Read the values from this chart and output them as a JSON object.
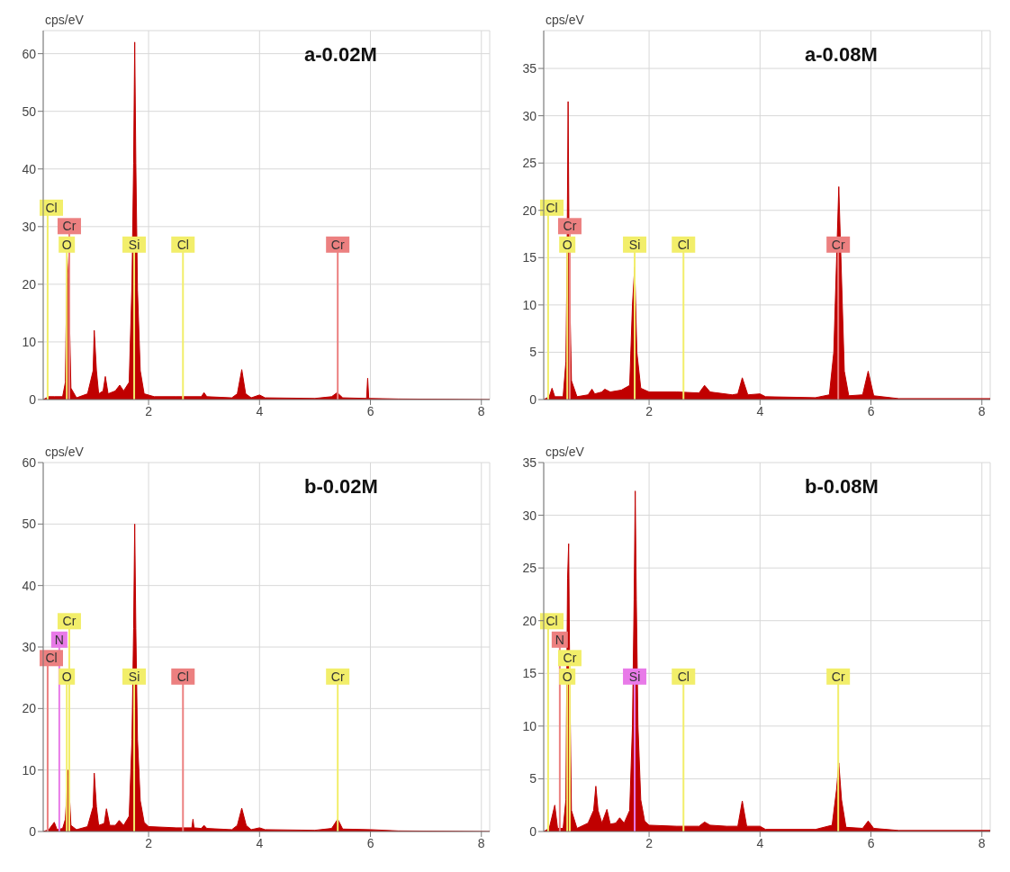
{
  "chart_data": [
    {
      "type": "area",
      "title": "a-0.02M",
      "ylabel": "cps/eV",
      "xlim": [
        0.1,
        8.15
      ],
      "xticks": [
        2,
        4,
        6,
        8
      ],
      "ylim": [
        0,
        64
      ],
      "yticks": [
        0,
        10,
        20,
        30,
        40,
        50,
        60
      ],
      "grid": true,
      "x": [
        0.1,
        0.2,
        0.3,
        0.45,
        0.5,
        0.53,
        0.56,
        0.6,
        0.7,
        0.9,
        1.0,
        1.02,
        1.06,
        1.1,
        1.18,
        1.22,
        1.27,
        1.4,
        1.48,
        1.55,
        1.65,
        1.7,
        1.73,
        1.75,
        1.77,
        1.8,
        1.85,
        1.92,
        2.1,
        2.5,
        2.95,
        3.0,
        3.05,
        3.5,
        3.6,
        3.68,
        3.75,
        3.85,
        4.0,
        4.1,
        5.0,
        5.3,
        5.4,
        5.5,
        5.93,
        5.95,
        5.97,
        6.5,
        8.15
      ],
      "series": [
        {
          "color": "#c00000",
          "values": [
            0,
            0.5,
            0.5,
            0.5,
            3,
            25,
            20,
            2,
            0.3,
            1,
            5,
            12,
            5,
            1,
            1.5,
            4,
            1,
            1.5,
            2.5,
            1.5,
            3,
            20,
            41,
            62,
            41,
            19,
            5,
            1,
            0.5,
            0.5,
            0.5,
            1.2,
            0.5,
            0.3,
            1,
            5.2,
            1,
            0.3,
            0.8,
            0.3,
            0.2,
            0.5,
            1.2,
            0.3,
            0.2,
            3.7,
            0.2,
            0.1,
            0
          ]
        }
      ],
      "ref_lines": [
        {
          "axis": "x",
          "value": 0.525,
          "label": "O",
          "color": "#f2ee6a"
        },
        {
          "axis": "x",
          "value": 0.57,
          "label": "Cr",
          "color": "#ec8080"
        },
        {
          "axis": "x",
          "value": 0.18,
          "label": "Cl",
          "color": "#f2ee6a"
        },
        {
          "axis": "x",
          "value": 1.74,
          "label": "Si",
          "color": "#f2ee6a"
        },
        {
          "axis": "x",
          "value": 2.62,
          "label": "Cl",
          "color": "#f2ee6a"
        },
        {
          "axis": "x",
          "value": 5.41,
          "label": "Cr",
          "color": "#ec8080"
        }
      ]
    },
    {
      "type": "area",
      "title": "a-0.08M",
      "ylabel": "cps/eV",
      "xlim": [
        0.1,
        8.15
      ],
      "xticks": [
        2,
        4,
        6,
        8
      ],
      "ylim": [
        0,
        39
      ],
      "yticks": [
        0,
        5,
        10,
        15,
        20,
        25,
        30,
        35
      ],
      "grid": true,
      "x": [
        0.1,
        0.2,
        0.25,
        0.3,
        0.45,
        0.5,
        0.52,
        0.54,
        0.56,
        0.6,
        0.7,
        0.9,
        0.97,
        1.02,
        1.15,
        1.2,
        1.3,
        1.5,
        1.65,
        1.7,
        1.74,
        1.78,
        1.85,
        2.0,
        2.5,
        2.9,
        3.0,
        3.1,
        3.5,
        3.6,
        3.68,
        3.78,
        4.0,
        4.1,
        5.0,
        5.25,
        5.33,
        5.42,
        5.52,
        5.6,
        5.85,
        5.95,
        6.05,
        6.5,
        8.15
      ],
      "series": [
        {
          "color": "#c00000",
          "values": [
            0,
            0.3,
            1.2,
            0.3,
            0.3,
            4,
            14,
            31.5,
            14,
            2,
            0.3,
            0.5,
            1.1,
            0.6,
            0.8,
            1.1,
            0.8,
            1,
            1.5,
            10,
            14,
            5,
            1.2,
            0.8,
            0.8,
            0.7,
            1.5,
            0.8,
            0.5,
            0.6,
            2.3,
            0.5,
            0.6,
            0.3,
            0.2,
            0.5,
            5,
            22.5,
            3,
            0.4,
            0.5,
            3,
            0.4,
            0.1,
            0.1
          ]
        }
      ],
      "ref_lines": [
        {
          "axis": "x",
          "value": 0.525,
          "label": "O",
          "color": "#f2ee6a"
        },
        {
          "axis": "x",
          "value": 0.57,
          "label": "Cr",
          "color": "#ec8080"
        },
        {
          "axis": "x",
          "value": 0.18,
          "label": "Cl",
          "color": "#f2ee6a"
        },
        {
          "axis": "x",
          "value": 1.74,
          "label": "Si",
          "color": "#f2ee6a"
        },
        {
          "axis": "x",
          "value": 2.62,
          "label": "Cl",
          "color": "#f2ee6a"
        },
        {
          "axis": "x",
          "value": 5.41,
          "label": "Cr",
          "color": "#ec8080"
        }
      ]
    },
    {
      "type": "area",
      "title": "b-0.02M",
      "ylabel": "cps/eV",
      "xlim": [
        0.1,
        8.15
      ],
      "xticks": [
        2,
        4,
        6,
        8
      ],
      "ylim": [
        0,
        60
      ],
      "yticks": [
        0,
        10,
        20,
        30,
        40,
        50,
        60
      ],
      "grid": true,
      "x": [
        0.1,
        0.2,
        0.3,
        0.35,
        0.45,
        0.5,
        0.55,
        0.6,
        0.7,
        0.9,
        1.0,
        1.02,
        1.06,
        1.1,
        1.2,
        1.24,
        1.3,
        1.4,
        1.47,
        1.55,
        1.65,
        1.7,
        1.73,
        1.75,
        1.77,
        1.8,
        1.85,
        1.92,
        2.0,
        2.5,
        2.78,
        2.8,
        2.82,
        2.95,
        3.0,
        3.05,
        3.5,
        3.6,
        3.68,
        3.76,
        3.85,
        4.0,
        4.1,
        5.0,
        5.3,
        5.41,
        5.5,
        6.0,
        6.5,
        8.15
      ],
      "series": [
        {
          "color": "#c00000",
          "values": [
            0,
            0.3,
            1.5,
            0.3,
            0.5,
            2,
            10,
            1,
            0.3,
            0.8,
            4,
            9.5,
            4,
            1,
            1.3,
            3.7,
            1,
            1,
            1.8,
            1,
            2.5,
            15,
            33,
            50,
            33,
            15,
            5,
            1.5,
            0.8,
            0.6,
            0.6,
            2,
            0.6,
            0.5,
            1,
            0.5,
            0.3,
            1,
            3.8,
            1,
            0.3,
            0.6,
            0.3,
            0.2,
            0.5,
            2,
            0.4,
            0.3,
            0.1,
            0
          ]
        }
      ],
      "ref_lines": [
        {
          "axis": "x",
          "value": 0.525,
          "label": "O",
          "color": "#f2ee6a"
        },
        {
          "axis": "x",
          "value": 0.18,
          "label": "Cl",
          "color": "#ec8080"
        },
        {
          "axis": "x",
          "value": 0.39,
          "label": "N",
          "color": "#e87ae8"
        },
        {
          "axis": "x",
          "value": 0.57,
          "label": "Cr",
          "color": "#f2ee6a"
        },
        {
          "axis": "x",
          "value": 1.74,
          "label": "Si",
          "color": "#f2ee6a"
        },
        {
          "axis": "x",
          "value": 2.62,
          "label": "Cl",
          "color": "#ec8080"
        },
        {
          "axis": "x",
          "value": 5.41,
          "label": "Cr",
          "color": "#f2ee6a"
        }
      ]
    },
    {
      "type": "area",
      "title": "b-0.08M",
      "ylabel": "cps/eV",
      "xlim": [
        0.1,
        8.15
      ],
      "xticks": [
        2,
        4,
        6,
        8
      ],
      "ylim": [
        0,
        35
      ],
      "yticks": [
        0,
        5,
        10,
        15,
        20,
        25,
        30,
        35
      ],
      "grid": true,
      "x": [
        0.1,
        0.2,
        0.3,
        0.35,
        0.45,
        0.5,
        0.53,
        0.55,
        0.57,
        0.6,
        0.7,
        0.9,
        1.0,
        1.04,
        1.08,
        1.15,
        1.24,
        1.3,
        1.4,
        1.47,
        1.55,
        1.65,
        1.7,
        1.73,
        1.75,
        1.77,
        1.8,
        1.85,
        1.92,
        2.0,
        2.5,
        2.9,
        3.0,
        3.1,
        3.4,
        3.6,
        3.68,
        3.76,
        4.0,
        4.1,
        5.0,
        5.3,
        5.38,
        5.42,
        5.47,
        5.55,
        5.85,
        5.95,
        6.05,
        6.5,
        8.15
      ],
      "series": [
        {
          "color": "#c00000",
          "values": [
            0,
            0.3,
            2.5,
            0.3,
            0.3,
            3,
            24,
            27.3,
            14,
            2,
            0.3,
            0.8,
            2,
            4.3,
            2,
            0.8,
            2.1,
            0.7,
            0.8,
            1.3,
            0.8,
            2,
            10,
            22,
            32.3,
            22,
            10,
            3,
            1,
            0.6,
            0.5,
            0.5,
            0.9,
            0.6,
            0.5,
            0.5,
            2.9,
            0.5,
            0.5,
            0.2,
            0.2,
            0.6,
            4,
            6.5,
            3,
            0.4,
            0.3,
            1,
            0.3,
            0.1,
            0.1
          ]
        }
      ],
      "ref_lines": [
        {
          "axis": "x",
          "value": 0.525,
          "label": "O",
          "color": "#f2ee6a"
        },
        {
          "axis": "x",
          "value": 0.57,
          "label": "Cr",
          "color": "#f2ee6a"
        },
        {
          "axis": "x",
          "value": 0.39,
          "label": "N",
          "color": "#ec8080"
        },
        {
          "axis": "x",
          "value": 0.18,
          "label": "Cl",
          "color": "#f2ee6a"
        },
        {
          "axis": "x",
          "value": 1.74,
          "label": "Si",
          "color": "#e87ae8"
        },
        {
          "axis": "x",
          "value": 2.62,
          "label": "Cl",
          "color": "#f2ee6a"
        },
        {
          "axis": "x",
          "value": 5.41,
          "label": "Cr",
          "color": "#f2ee6a"
        }
      ]
    }
  ]
}
